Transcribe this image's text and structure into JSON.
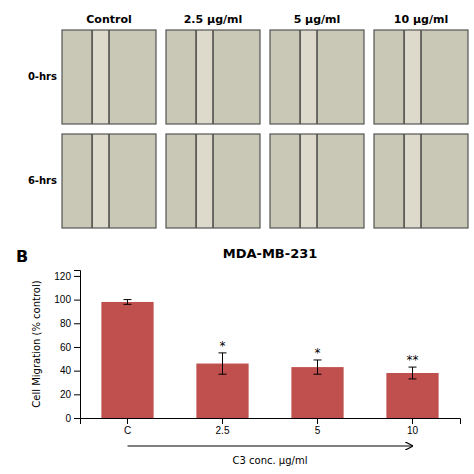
{
  "chart_data": {
    "type": "bar",
    "title": "MDA-MB-231",
    "xlabel": "C3 conc. μg/ml",
    "ylabel": "Cell Migration (% control)",
    "categories": [
      "C",
      "2.5",
      "5",
      "10"
    ],
    "values": [
      98,
      46,
      43,
      38
    ],
    "errors": [
      2,
      9,
      6,
      5
    ],
    "significance": [
      null,
      "*",
      "*",
      "**"
    ],
    "color": "#c0504d",
    "ylim": [
      0,
      125
    ],
    "yticks": [
      0,
      20,
      40,
      60,
      80,
      100,
      120
    ],
    "grid": false,
    "annotations": {
      "panel": "B",
      "columns": [
        "Control",
        "2.5 μg/ml",
        "5 μg/ml",
        "10 μg/ml"
      ],
      "rows": [
        "0-hrs",
        "6-hrs"
      ]
    }
  }
}
